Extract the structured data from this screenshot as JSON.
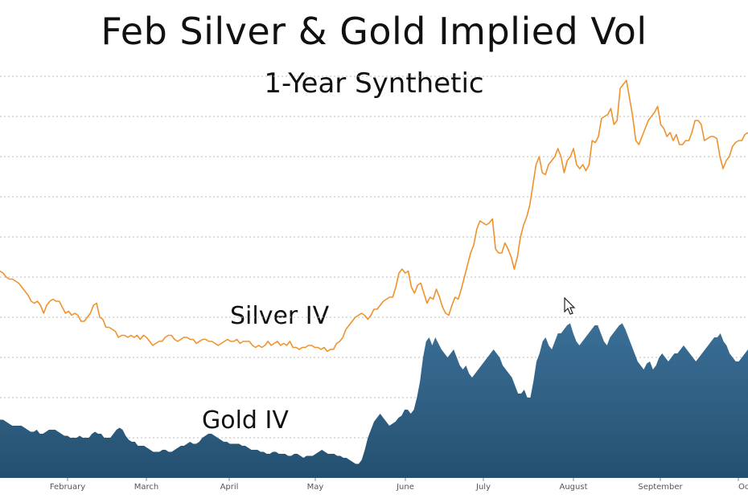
{
  "chart_data": {
    "type": "area",
    "title": "Feb Silver & Gold Implied Vol",
    "subtitle": "1-Year Synthetic",
    "x_tick_labels": [
      "February",
      "March",
      "April",
      "May",
      "June",
      "July",
      "August",
      "September",
      "Octob"
    ],
    "ylim": [
      0,
      100
    ],
    "grid": true,
    "legend": "inline",
    "colors": {
      "silver": "#f0922b",
      "gold": "#2f5f84",
      "grid": "#bbbbbb"
    },
    "series": [
      {
        "name": "Silver IV",
        "chart_kind": "line",
        "values": [
          51.5,
          51,
          50,
          49.5,
          49.5,
          49,
          48.5,
          47.5,
          46.5,
          45.5,
          44,
          43.5,
          44,
          43,
          41,
          43,
          44,
          44.5,
          44,
          44,
          42.5,
          41,
          41.5,
          40.5,
          41,
          40.5,
          39,
          39,
          40,
          41,
          43,
          43.5,
          40,
          39.5,
          37.5,
          37.5,
          37,
          36.5,
          35,
          35.5,
          35.5,
          35,
          35.5,
          35,
          35.5,
          34.5,
          35.5,
          35,
          34,
          33,
          33.5,
          34,
          34,
          35,
          35.5,
          35.5,
          34.5,
          34,
          34.5,
          35,
          35,
          34.5,
          34.5,
          33.5,
          34,
          34.5,
          34.5,
          34,
          34,
          33.5,
          33,
          33.5,
          34,
          34.5,
          34,
          34,
          34.5,
          33.5,
          34,
          34,
          34,
          33,
          32.5,
          33,
          32.5,
          33,
          34,
          33,
          33.5,
          34,
          33,
          33.5,
          33,
          34,
          32.5,
          32.5,
          32,
          32.5,
          32.5,
          33,
          33,
          32.5,
          32.5,
          32,
          32.5,
          31.5,
          32,
          32,
          33.5,
          34,
          35,
          37,
          38,
          39,
          40,
          40.5,
          41,
          40.5,
          39.5,
          40.5,
          42,
          42,
          43,
          44,
          44.5,
          45,
          45,
          47.5,
          51,
          52,
          51,
          51.5,
          47.5,
          46,
          48,
          48.5,
          46,
          43.5,
          45,
          44.5,
          47,
          45,
          42.5,
          41,
          40.5,
          43,
          45,
          44.5,
          47,
          50,
          53,
          56,
          58,
          62,
          64,
          63.5,
          63,
          63.5,
          64.5,
          57,
          56,
          56,
          58.5,
          57,
          55,
          52,
          55,
          60,
          63,
          65,
          68,
          73,
          78,
          80,
          76,
          75.5,
          78,
          79,
          80,
          82,
          80,
          76,
          79,
          80,
          82,
          78,
          77,
          78,
          76.5,
          78,
          84,
          83.5,
          85,
          89.5,
          90,
          90.5,
          92,
          88,
          89,
          97,
          98,
          99,
          94.5,
          90,
          84,
          83,
          85,
          87,
          89,
          90,
          91,
          92.5,
          88,
          87,
          85,
          86,
          84,
          85.5,
          83,
          83,
          84,
          84,
          86,
          89,
          89,
          88,
          84,
          84.5,
          85,
          85,
          84.5,
          80,
          77,
          79,
          80,
          82.5,
          83.5,
          84,
          84,
          85.5,
          86
        ]
      },
      {
        "name": "Gold IV",
        "chart_kind": "area",
        "values": [
          14.5,
          14.5,
          14,
          13.5,
          13,
          13,
          13,
          13,
          12.5,
          12,
          11.5,
          11.5,
          12,
          11,
          11,
          11.5,
          12,
          12,
          12,
          11.5,
          11,
          10.5,
          10.5,
          10,
          10,
          10,
          10.5,
          10,
          10,
          10,
          11,
          11.5,
          11,
          11,
          10,
          10,
          10,
          11,
          12,
          12.5,
          12,
          10.5,
          9.5,
          9,
          9,
          8,
          8,
          8,
          7.5,
          7,
          6.5,
          6.5,
          6.5,
          7,
          7,
          6.5,
          6.5,
          7,
          7.5,
          8,
          8,
          8.5,
          9,
          8.5,
          8.5,
          9,
          10,
          10.5,
          11,
          11,
          10.5,
          10,
          9.5,
          9,
          9,
          8.5,
          8.5,
          8.5,
          8.5,
          8,
          8,
          7.5,
          7,
          7,
          7,
          6.5,
          6.5,
          6,
          6,
          6.5,
          6.5,
          6,
          6,
          6,
          5.5,
          5.5,
          6,
          6,
          5.5,
          5,
          5.5,
          5.5,
          5.5,
          6,
          6.5,
          7,
          6.5,
          6,
          6,
          6,
          5.5,
          5.5,
          5,
          5,
          4.5,
          4,
          3.5,
          3.5,
          4.5,
          7,
          10,
          12,
          14,
          15,
          16,
          15,
          14,
          13,
          13.5,
          14,
          15,
          15.5,
          17,
          17,
          16,
          17,
          20,
          24,
          30,
          34,
          35,
          33,
          35,
          33.5,
          32,
          31,
          30,
          31,
          32,
          30,
          28,
          27,
          28,
          26,
          25,
          26,
          27,
          28,
          29,
          30,
          31,
          32,
          31,
          30,
          28,
          27,
          26,
          25,
          23,
          21,
          21,
          22,
          20,
          20,
          24,
          29,
          31,
          34,
          35,
          33,
          32,
          34,
          36,
          36,
          37,
          38,
          38.5,
          36,
          34,
          33,
          34,
          35,
          36,
          37,
          38,
          38,
          36,
          34,
          33,
          35,
          36,
          37,
          38,
          38.5,
          37,
          35,
          33,
          31,
          29,
          28,
          27,
          28.5,
          29,
          27,
          28,
          30,
          31,
          30,
          29,
          30,
          31,
          31,
          32,
          33,
          32,
          31,
          30,
          29,
          30,
          31,
          32,
          33,
          34,
          35,
          35,
          36,
          34,
          33,
          31,
          30,
          29,
          29,
          30,
          31,
          32
        ]
      }
    ]
  }
}
